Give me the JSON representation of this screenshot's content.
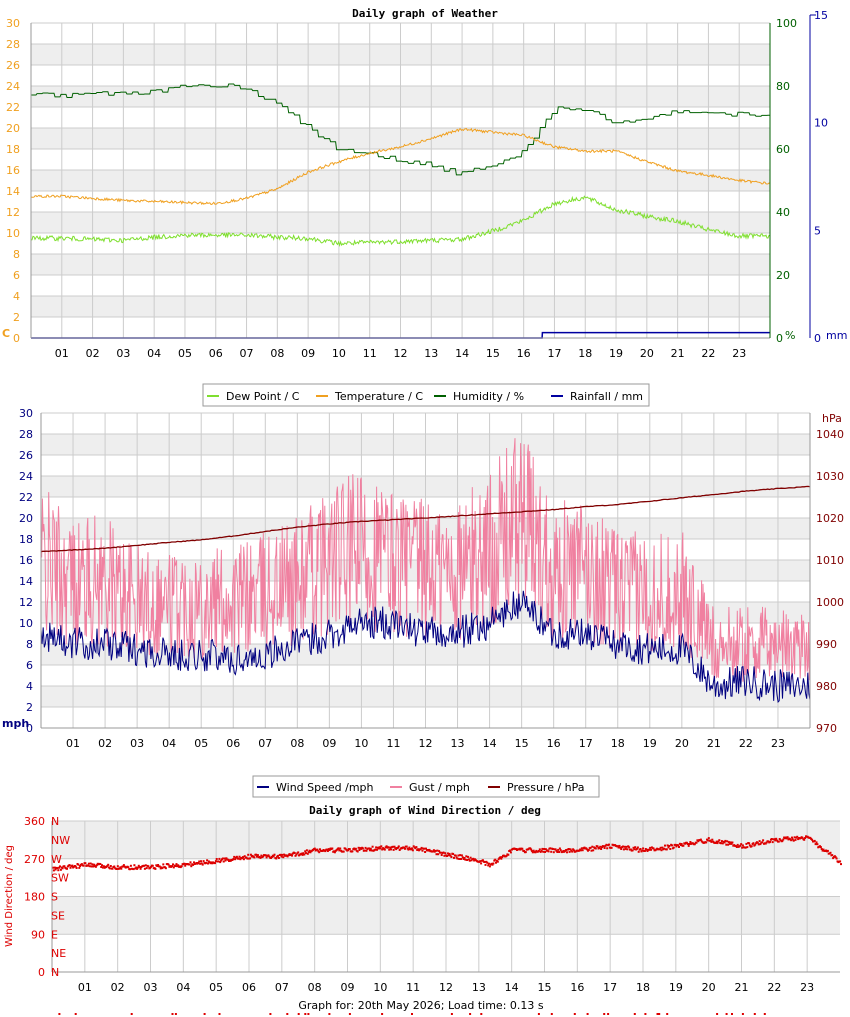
{
  "weather": {
    "title": "Daily graph of Weather",
    "legend": [
      {
        "label": "Dew Point / C",
        "color": "#7fdf2f"
      },
      {
        "label": "Temperature / C",
        "color": "#f0a020"
      },
      {
        "label": "Humidity / %",
        "color": "#006000"
      },
      {
        "label": "Rainfall / mm",
        "color": "#0000a0"
      }
    ],
    "left_unit": "C",
    "hum_unit": "%",
    "rain_unit": "mm",
    "temp_ticks": [
      "0",
      "2",
      "4",
      "6",
      "8",
      "10",
      "12",
      "14",
      "16",
      "18",
      "20",
      "22",
      "24",
      "26",
      "28",
      "30"
    ],
    "hum_ticks": [
      "0",
      "20",
      "40",
      "60",
      "80",
      "100"
    ],
    "rain_ticks": [
      "0",
      "5",
      "10",
      "15"
    ]
  },
  "wind": {
    "title_fragment": "Daily graph of Wind",
    "legend": [
      {
        "label": "Wind Speed /mph",
        "color": "#000080"
      },
      {
        "label": "Gust / mph",
        "color": "#f080a0"
      },
      {
        "label": "Pressure / hPa",
        "color": "#800000"
      }
    ],
    "left_unit": "mph",
    "right_unit": "hPa",
    "speed_ticks": [
      "0",
      "2",
      "4",
      "6",
      "8",
      "10",
      "12",
      "14",
      "16",
      "18",
      "20",
      "22",
      "24",
      "26",
      "28",
      "30"
    ],
    "pressure_ticks": [
      "970",
      "980",
      "990",
      "1000",
      "1010",
      "1020",
      "1030",
      "1040"
    ]
  },
  "direction": {
    "title": "Daily graph of Wind Direction / deg",
    "ylabel": "Wind Direction / deg",
    "deg_ticks": [
      "0",
      "90",
      "180",
      "270",
      "360"
    ],
    "compass": [
      "N",
      "NW",
      "W",
      "SW",
      "S",
      "SE",
      "E",
      "NE",
      "N"
    ],
    "footer": "Graph for: 20th May 2026; Load time: 0.13 s"
  },
  "hours": [
    "01",
    "02",
    "03",
    "04",
    "05",
    "06",
    "07",
    "08",
    "09",
    "10",
    "11",
    "12",
    "13",
    "14",
    "15",
    "16",
    "17",
    "18",
    "19",
    "20",
    "21",
    "22",
    "23"
  ],
  "colors": {
    "grid": "#cccccc",
    "band": "#eeeeee",
    "temp_axis": "#f0a020",
    "hum_axis": "#006000",
    "rain_axis": "#0000a0",
    "mph_axis": "#000080",
    "hpa_axis": "#800000",
    "dir": "#dd0000"
  },
  "chart_data": [
    {
      "type": "line",
      "title": "Daily graph of Weather",
      "x_unit": "hour",
      "xlim": [
        0,
        24
      ],
      "series": [
        {
          "name": "Dew Point / C",
          "axis": "C",
          "x": [
            0,
            1,
            2,
            3,
            4,
            5,
            6,
            7,
            8,
            9,
            10,
            11,
            12,
            13,
            14,
            15,
            16,
            17,
            18,
            19,
            20,
            21,
            22,
            23,
            24
          ],
          "y": [
            9.5,
            9.5,
            9.4,
            9.3,
            9.6,
            9.8,
            9.8,
            9.8,
            9.6,
            9.5,
            9.0,
            9.1,
            9.2,
            9.3,
            9.4,
            10.2,
            11.2,
            12.8,
            13.4,
            12.2,
            11.6,
            11.1,
            10.3,
            9.7,
            9.7
          ]
        },
        {
          "name": "Temperature / C",
          "axis": "C",
          "x": [
            0,
            1,
            2,
            3,
            4,
            5,
            6,
            7,
            8,
            9,
            10,
            11,
            12,
            13,
            14,
            15,
            16,
            17,
            18,
            19,
            20,
            21,
            22,
            23,
            24
          ],
          "y": [
            13.5,
            13.5,
            13.3,
            13.1,
            13.0,
            12.9,
            12.8,
            13.3,
            14.2,
            15.8,
            16.8,
            17.6,
            18.2,
            19.0,
            19.9,
            19.6,
            19.3,
            18.2,
            17.8,
            17.8,
            16.8,
            15.9,
            15.5,
            15.0,
            14.7
          ]
        },
        {
          "name": "Humidity / %",
          "axis": "%",
          "x": [
            0,
            1,
            2,
            3,
            4,
            5,
            6,
            7,
            8,
            9,
            10,
            11,
            12,
            13,
            14,
            15,
            16,
            17,
            18,
            19,
            20,
            21,
            22,
            23,
            24
          ],
          "y": [
            77,
            77,
            77.5,
            77.5,
            78,
            80,
            80.5,
            79.5,
            74,
            67,
            60,
            59,
            56,
            55,
            52,
            55,
            59,
            73,
            73,
            68,
            70,
            72,
            71.5,
            71,
            71
          ]
        },
        {
          "name": "Rainfall / mm",
          "axis": "mm",
          "x": [
            0,
            16.6,
            16.61,
            24
          ],
          "y": [
            0,
            0,
            0.25,
            0.25
          ]
        }
      ],
      "ylim_left": [
        0,
        30
      ],
      "ylim_humidity": [
        0,
        100
      ],
      "ylim_rain": [
        0,
        15
      ],
      "grid": true,
      "legend_position": "below"
    },
    {
      "type": "line",
      "title": "",
      "x_unit": "hour",
      "xlim": [
        0,
        24
      ],
      "series": [
        {
          "name": "Wind Speed /mph",
          "axis": "mph",
          "x": [
            0,
            1,
            2,
            3,
            4,
            5,
            6,
            7,
            8,
            9,
            10,
            11,
            12,
            13,
            14,
            15,
            16,
            17,
            18,
            19,
            20,
            21,
            22,
            23,
            24
          ],
          "y": [
            9,
            8,
            8,
            7.5,
            7,
            7,
            6.5,
            7,
            8,
            9,
            10,
            10,
            9,
            9,
            10,
            12,
            9,
            9,
            8,
            7.5,
            7.5,
            4,
            4.5,
            4,
            4
          ]
        },
        {
          "name": "Gust / mph",
          "axis": "mph",
          "x": [
            0,
            1,
            2,
            3,
            4,
            5,
            6,
            7,
            8,
            9,
            10,
            11,
            12,
            13,
            14,
            15,
            16,
            17,
            18,
            19,
            20,
            21,
            22,
            23,
            24
          ],
          "y": [
            16,
            14,
            14,
            12,
            12,
            12,
            12,
            13,
            14,
            16,
            17,
            16,
            15,
            15,
            17,
            20,
            15,
            15,
            13,
            13,
            13,
            8,
            8,
            8,
            8
          ]
        },
        {
          "name": "Pressure / hPa",
          "axis": "hPa",
          "x": [
            0,
            1,
            2,
            3,
            4,
            5,
            6,
            7,
            8,
            9,
            10,
            11,
            12,
            13,
            14,
            15,
            16,
            17,
            18,
            19,
            20,
            21,
            22,
            23,
            24
          ],
          "y": [
            1012,
            1012.4,
            1012.8,
            1013.5,
            1014.2,
            1014.8,
            1015.7,
            1016.8,
            1017.8,
            1018.6,
            1019.2,
            1019.6,
            1020.0,
            1020.5,
            1021.0,
            1021.5,
            1022.0,
            1022.7,
            1023.2,
            1024.0,
            1024.8,
            1025.6,
            1026.4,
            1027.0,
            1027.5
          ]
        }
      ],
      "ylim_left": [
        0,
        30
      ],
      "ylim_right": [
        970,
        1045
      ],
      "grid": true,
      "legend_position": "below"
    },
    {
      "type": "scatter",
      "title": "Daily graph of Wind Direction / deg",
      "ylabel": "Wind Direction / deg",
      "x_unit": "hour",
      "xlim": [
        0,
        24
      ],
      "ylim": [
        0,
        360
      ],
      "series": [
        {
          "name": "",
          "x": [
            0,
            1,
            2,
            3,
            4,
            5,
            6,
            7,
            8,
            9,
            10,
            11,
            12,
            13,
            13.3,
            14,
            15,
            16,
            17,
            18,
            19,
            20,
            21,
            22,
            23,
            24
          ],
          "y": [
            245,
            255,
            250,
            250,
            255,
            265,
            275,
            275,
            290,
            290,
            295,
            295,
            280,
            265,
            255,
            290,
            290,
            290,
            300,
            290,
            300,
            315,
            300,
            315,
            320,
            260
          ]
        }
      ],
      "grid": true
    }
  ]
}
